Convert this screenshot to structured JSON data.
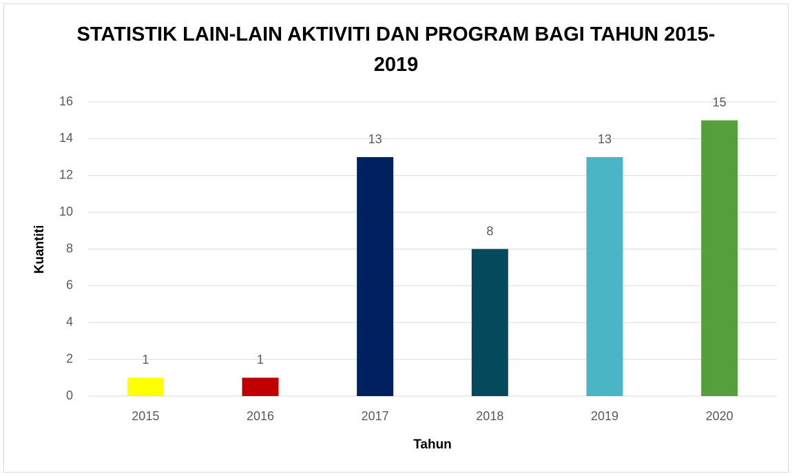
{
  "chart_data": {
    "type": "bar",
    "title": "STATISTIK LAIN-LAIN AKTIVITI DAN PROGRAM BAGI TAHUN 2015-2019",
    "x_label": "Tahun",
    "y_label": "Kuantiti",
    "categories": [
      "2015",
      "2016",
      "2017",
      "2018",
      "2019",
      "2020"
    ],
    "values": [
      1,
      1,
      13,
      8,
      13,
      15
    ],
    "colors": [
      "#ffff00",
      "#c00000",
      "#002060",
      "#054a5c",
      "#4ab5c4",
      "#55a03c"
    ],
    "ylim": [
      0,
      16
    ],
    "yticks": [
      0,
      2,
      4,
      6,
      8,
      10,
      12,
      14,
      16
    ],
    "grid": true
  }
}
